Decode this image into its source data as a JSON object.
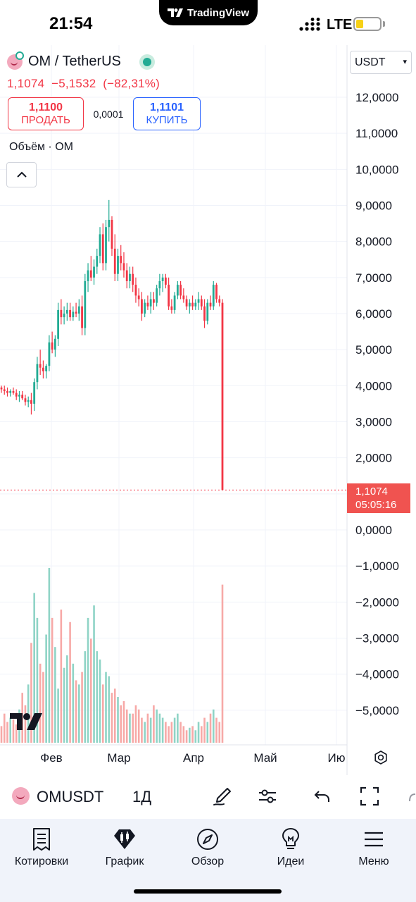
{
  "status_bar": {
    "time": "21:54",
    "app_badge": "TradingView",
    "network": "LTE",
    "battery_level": 0.3
  },
  "header": {
    "symbol_title": "OM / TetherUS",
    "last_price": "1,1074",
    "change": "−5,1532",
    "change_pct": "(−82,31%)",
    "live_indicator": "market-open-dot"
  },
  "trade": {
    "sell_price": "1,1100",
    "sell_label": "ПРОДАТЬ",
    "spread": "0,0001",
    "buy_price": "1,1101",
    "buy_label": "КУПИТЬ"
  },
  "indicator_label": "Объём · OM",
  "currency_select": "USDT",
  "price_axis": [
    "12,0000",
    "11,0000",
    "10,0000",
    "9,0000",
    "8,0000",
    "7,0000",
    "6,0000",
    "5,0000",
    "4,0000",
    "3,0000",
    "2,0000",
    "1,0000",
    "0,0000",
    "−1,0000",
    "−2,0000",
    "−3,0000",
    "−4,0000",
    "−5,0000"
  ],
  "time_axis": [
    "Фев",
    "Мар",
    "Апр",
    "Май",
    "Ию"
  ],
  "last_price_tag": {
    "price": "1,1074",
    "countdown": "05:05:16"
  },
  "colors": {
    "up": "#22ab94",
    "down": "#f23645",
    "buy": "#2962ff",
    "tag": "#f05350"
  },
  "chart_data": {
    "type": "candlestick",
    "symbol": "OMUSDT",
    "interval": "1Д",
    "ylim": [
      -5.8,
      12.7
    ],
    "candles": [
      [
        3.95,
        4.0,
        3.8,
        3.9
      ],
      [
        3.9,
        4.0,
        3.75,
        3.85
      ],
      [
        3.85,
        3.95,
        3.7,
        3.8
      ],
      [
        3.8,
        3.9,
        3.7,
        3.85
      ],
      [
        3.85,
        3.95,
        3.75,
        3.8
      ],
      [
        3.8,
        3.9,
        3.6,
        3.7
      ],
      [
        3.7,
        3.85,
        3.55,
        3.75
      ],
      [
        3.75,
        3.85,
        3.6,
        3.65
      ],
      [
        3.65,
        3.75,
        3.45,
        3.55
      ],
      [
        3.55,
        3.7,
        3.4,
        3.6
      ],
      [
        3.6,
        3.8,
        3.2,
        3.5
      ],
      [
        3.5,
        4.2,
        3.3,
        4.1
      ],
      [
        4.1,
        4.8,
        3.9,
        4.6
      ],
      [
        4.6,
        5.0,
        4.3,
        4.5
      ],
      [
        4.5,
        4.7,
        4.2,
        4.4
      ],
      [
        4.4,
        4.6,
        4.2,
        4.55
      ],
      [
        4.55,
        5.4,
        4.4,
        5.2
      ],
      [
        5.2,
        5.5,
        4.9,
        5.0
      ],
      [
        5.0,
        5.4,
        4.8,
        5.3
      ],
      [
        5.3,
        6.3,
        5.1,
        6.1
      ],
      [
        6.1,
        6.4,
        5.7,
        5.9
      ],
      [
        5.9,
        6.2,
        5.7,
        6.0
      ],
      [
        6.0,
        6.3,
        5.8,
        6.1
      ],
      [
        6.1,
        6.3,
        5.8,
        5.9
      ],
      [
        5.9,
        6.2,
        5.8,
        6.05
      ],
      [
        6.05,
        6.3,
        5.9,
        6.0
      ],
      [
        6.0,
        6.4,
        5.8,
        6.2
      ],
      [
        6.2,
        6.5,
        5.4,
        5.6
      ],
      [
        5.6,
        7.1,
        5.4,
        6.9
      ],
      [
        6.9,
        7.4,
        6.6,
        7.2
      ],
      [
        7.2,
        7.6,
        6.9,
        7.0
      ],
      [
        7.0,
        7.5,
        6.8,
        7.3
      ],
      [
        7.3,
        7.8,
        7.1,
        7.6
      ],
      [
        7.6,
        8.4,
        7.4,
        8.2
      ],
      [
        8.2,
        8.5,
        7.2,
        7.4
      ],
      [
        7.4,
        8.6,
        7.2,
        8.4
      ],
      [
        8.4,
        9.15,
        8.0,
        8.6
      ],
      [
        8.6,
        8.7,
        7.6,
        7.8
      ],
      [
        7.8,
        8.2,
        6.9,
        7.1
      ],
      [
        7.1,
        7.8,
        6.9,
        7.6
      ],
      [
        7.6,
        7.9,
        7.2,
        7.4
      ],
      [
        7.4,
        7.7,
        7.0,
        7.2
      ],
      [
        7.2,
        7.4,
        6.7,
        6.9
      ],
      [
        6.9,
        7.3,
        6.7,
        7.1
      ],
      [
        7.1,
        7.3,
        6.6,
        6.8
      ],
      [
        6.8,
        7.0,
        6.3,
        6.5
      ],
      [
        6.5,
        6.7,
        6.2,
        6.4
      ],
      [
        6.4,
        6.6,
        5.8,
        6.0
      ],
      [
        6.0,
        6.4,
        5.9,
        6.3
      ],
      [
        6.3,
        6.5,
        6.1,
        6.2
      ],
      [
        6.2,
        6.6,
        6.0,
        6.4
      ],
      [
        6.4,
        6.6,
        6.1,
        6.3
      ],
      [
        6.3,
        6.8,
        6.2,
        6.7
      ],
      [
        6.7,
        7.1,
        6.5,
        6.9
      ],
      [
        6.9,
        7.1,
        6.6,
        7.0
      ],
      [
        7.0,
        7.1,
        6.7,
        6.8
      ],
      [
        6.8,
        7.0,
        6.1,
        6.2
      ],
      [
        6.2,
        6.4,
        6.0,
        6.1
      ],
      [
        6.1,
        6.6,
        6.0,
        6.5
      ],
      [
        6.5,
        6.9,
        6.4,
        6.8
      ],
      [
        6.8,
        6.9,
        6.4,
        6.5
      ],
      [
        6.5,
        6.7,
        6.3,
        6.4
      ],
      [
        6.4,
        6.5,
        6.1,
        6.2
      ],
      [
        6.2,
        6.4,
        6.0,
        6.3
      ],
      [
        6.3,
        6.5,
        6.1,
        6.2
      ],
      [
        6.2,
        6.4,
        6.1,
        6.3
      ],
      [
        6.3,
        6.6,
        6.1,
        6.4
      ],
      [
        6.4,
        6.5,
        6.1,
        6.2
      ],
      [
        6.2,
        6.4,
        5.6,
        5.8
      ],
      [
        5.8,
        6.4,
        5.7,
        6.3
      ],
      [
        6.3,
        6.5,
        6.1,
        6.2
      ],
      [
        6.2,
        6.9,
        6.1,
        6.8
      ],
      [
        6.8,
        6.85,
        6.3,
        6.4
      ],
      [
        6.4,
        6.5,
        6.2,
        6.3
      ],
      [
        6.3,
        6.4,
        1.1074,
        1.1074
      ]
    ],
    "volume": [
      20,
      35,
      25,
      30,
      28,
      22,
      40,
      60,
      45,
      70,
      120,
      180,
      150,
      95,
      85,
      130,
      210,
      150,
      115,
      65,
      160,
      90,
      105,
      145,
      95,
      75,
      70,
      85,
      110,
      150,
      125,
      165,
      110,
      100,
      70,
      85,
      80,
      60,
      65,
      55,
      45,
      50,
      40,
      35,
      35,
      45,
      40,
      30,
      25,
      35,
      30,
      45,
      40,
      35,
      30,
      25,
      20,
      25,
      30,
      35,
      25,
      20,
      15,
      18,
      20,
      15,
      25,
      20,
      30,
      25,
      35,
      40,
      30,
      25,
      190
    ]
  }
}
